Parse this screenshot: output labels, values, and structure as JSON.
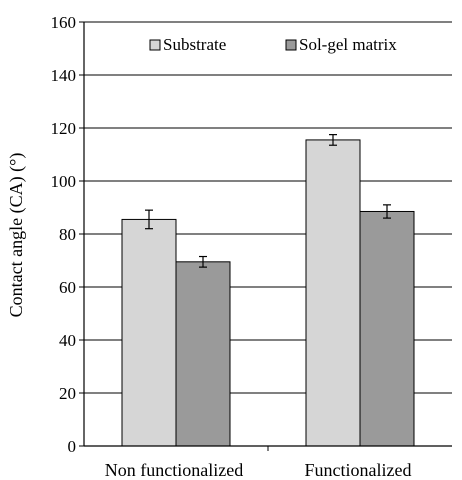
{
  "chart_data": {
    "type": "bar",
    "ylabel": "Contact angle (CA) (°)",
    "xlabel": "",
    "ylim": [
      0,
      160
    ],
    "yticks": [
      0,
      20,
      40,
      60,
      80,
      100,
      120,
      140,
      160
    ],
    "grid": true,
    "legend_position": "top",
    "categories": [
      "Non functionalized",
      "Functionalized"
    ],
    "series": [
      {
        "name": "Substrate",
        "values": [
          85.5,
          115.5
        ],
        "errors": [
          3.5,
          2
        ],
        "color": "#d6d6d6"
      },
      {
        "name": "Sol-gel matrix",
        "values": [
          69.5,
          88.5
        ],
        "errors": [
          2,
          2.5
        ],
        "color": "#9a9a9a"
      }
    ]
  }
}
